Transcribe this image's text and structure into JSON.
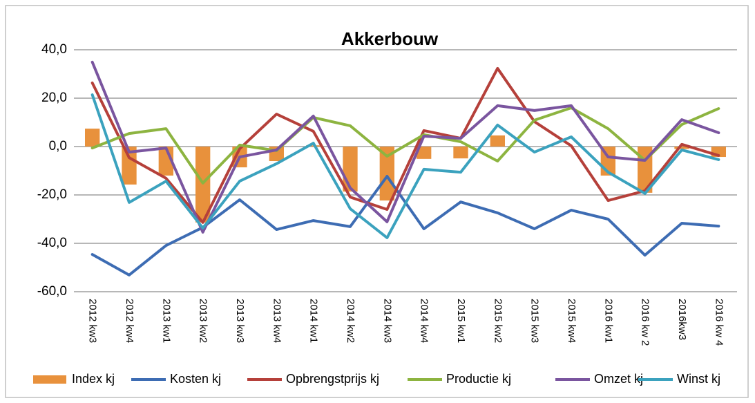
{
  "chart_data": {
    "type": "combo",
    "title": "Akkerbouw",
    "categories": [
      "2012 kw3",
      "2012 kw4",
      "2013 kw1",
      "2013 kw2",
      "2013 kw3",
      "2013 kw4",
      "2014 kw1",
      "2014 kw2",
      "2014 kw3",
      "2014 kw4",
      "2015 kw1",
      "2015 kw2",
      "2015 kw3",
      "2015 kw4",
      "2016 kw1",
      "2016 kw 2",
      "2016kw3",
      "2016 kw 4"
    ],
    "series": [
      {
        "name": "Index kj",
        "type": "bar",
        "color": "#e8913c",
        "values": [
          7.4,
          -15.7,
          -12,
          -31.4,
          -8.6,
          -6,
          0.5,
          -18.6,
          -22.3,
          -5.1,
          -4.9,
          4.6,
          0,
          0,
          -12,
          -19.1,
          -1,
          -4.3
        ]
      },
      {
        "name": "Kosten kj",
        "type": "line",
        "color": "#3d6cb3",
        "values": [
          -44.6,
          -53.1,
          -40.9,
          -33.4,
          -22,
          -34.3,
          -30.6,
          -33.1,
          -12.3,
          -34,
          -22.9,
          -27.4,
          -34,
          -26.3,
          -30,
          -44.9,
          -31.7,
          -32.9
        ]
      },
      {
        "name": "Opbrengstprijs kj",
        "type": "line",
        "color": "#b5403a",
        "values": [
          26.3,
          -4.6,
          -13.1,
          -31.4,
          -0.9,
          13.4,
          6.3,
          -20.9,
          -26,
          6.6,
          3.4,
          32.3,
          10.3,
          0.3,
          -22.3,
          -18.3,
          0.9,
          -3.7
        ]
      },
      {
        "name": "Productie kj",
        "type": "line",
        "color": "#8db440",
        "values": [
          -0.6,
          5.4,
          7.4,
          -15.1,
          0.6,
          -1.7,
          12,
          8.6,
          -4,
          4.9,
          2,
          -6,
          10.9,
          16,
          7.4,
          -5.7,
          9.1,
          15.7
        ]
      },
      {
        "name": "Omzet kj",
        "type": "line",
        "color": "#7a559f",
        "values": [
          34.9,
          -2.3,
          -0.6,
          -35.4,
          -4.3,
          -1.4,
          12.6,
          -17.1,
          -31.1,
          4.3,
          3.4,
          16.9,
          14.9,
          16.9,
          -4.3,
          -5.7,
          11.1,
          5.7
        ]
      },
      {
        "name": "Winst kj",
        "type": "line",
        "color": "#3ba2be",
        "values": [
          21.4,
          -23.1,
          -14.3,
          -33.7,
          -14.3,
          -7.1,
          1.4,
          -25.7,
          -37.7,
          -9.4,
          -10.6,
          8.9,
          -2.3,
          4,
          -10.6,
          -19.4,
          -1.4,
          -5.4
        ]
      }
    ],
    "ylim": [
      -60,
      40
    ],
    "yticks": [
      {
        "value": -60,
        "label": "-60,0"
      },
      {
        "value": -40,
        "label": "-40,0"
      },
      {
        "value": -20,
        "label": "-20,0"
      },
      {
        "value": 0,
        "label": "0,0"
      },
      {
        "value": 20,
        "label": "20,0"
      },
      {
        "value": 40,
        "label": "40,0"
      }
    ],
    "grid": true,
    "legend": "bottom"
  }
}
